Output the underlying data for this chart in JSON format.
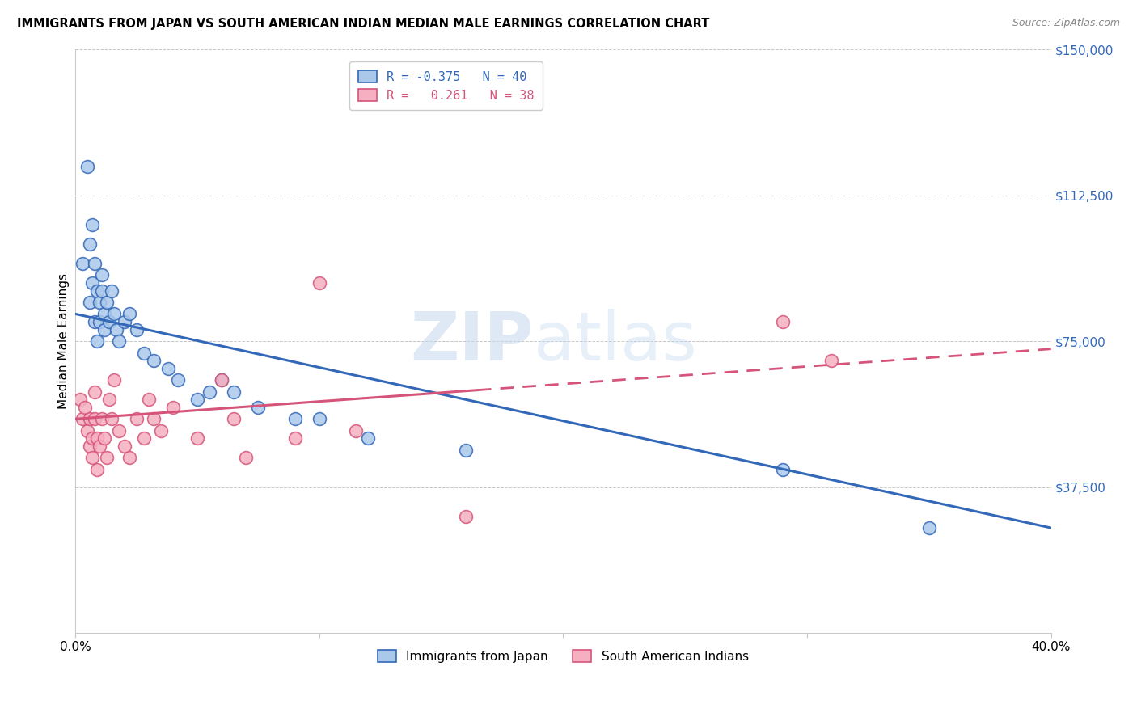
{
  "title": "IMMIGRANTS FROM JAPAN VS SOUTH AMERICAN INDIAN MEDIAN MALE EARNINGS CORRELATION CHART",
  "source": "Source: ZipAtlas.com",
  "ylabel": "Median Male Earnings",
  "ytick_labels": [
    "",
    "$37,500",
    "$75,000",
    "$112,500",
    "$150,000"
  ],
  "xlim": [
    0.0,
    0.4
  ],
  "ylim": [
    0,
    150000
  ],
  "legend_top_labels": [
    "R = -0.375   N = 40",
    "R =   0.261   N = 38"
  ],
  "legend_bottom": [
    "Immigrants from Japan",
    "South American Indians"
  ],
  "japan_color": "#aac8ea",
  "japan_line_color": "#3368b8",
  "india_color": "#f5afc0",
  "india_line_color": "#d6547a",
  "watermark_zip": "ZIP",
  "watermark_atlas": "atlas",
  "japan_x": [
    0.003,
    0.005,
    0.006,
    0.006,
    0.007,
    0.007,
    0.008,
    0.008,
    0.009,
    0.009,
    0.01,
    0.01,
    0.011,
    0.011,
    0.012,
    0.012,
    0.013,
    0.014,
    0.015,
    0.016,
    0.017,
    0.018,
    0.02,
    0.022,
    0.025,
    0.028,
    0.032,
    0.038,
    0.042,
    0.05,
    0.055,
    0.06,
    0.065,
    0.075,
    0.09,
    0.1,
    0.12,
    0.16,
    0.29,
    0.35
  ],
  "japan_y": [
    95000,
    120000,
    85000,
    100000,
    90000,
    105000,
    80000,
    95000,
    88000,
    75000,
    85000,
    80000,
    92000,
    88000,
    82000,
    78000,
    85000,
    80000,
    88000,
    82000,
    78000,
    75000,
    80000,
    82000,
    78000,
    72000,
    70000,
    68000,
    65000,
    60000,
    62000,
    65000,
    62000,
    58000,
    55000,
    55000,
    50000,
    47000,
    42000,
    27000
  ],
  "india_x": [
    0.002,
    0.003,
    0.004,
    0.005,
    0.006,
    0.006,
    0.007,
    0.007,
    0.008,
    0.008,
    0.009,
    0.009,
    0.01,
    0.011,
    0.012,
    0.013,
    0.014,
    0.015,
    0.016,
    0.018,
    0.02,
    0.022,
    0.025,
    0.028,
    0.03,
    0.032,
    0.035,
    0.04,
    0.05,
    0.06,
    0.065,
    0.07,
    0.09,
    0.1,
    0.115,
    0.16,
    0.29,
    0.31
  ],
  "india_y": [
    60000,
    55000,
    58000,
    52000,
    55000,
    48000,
    50000,
    45000,
    55000,
    62000,
    50000,
    42000,
    48000,
    55000,
    50000,
    45000,
    60000,
    55000,
    65000,
    52000,
    48000,
    45000,
    55000,
    50000,
    60000,
    55000,
    52000,
    58000,
    50000,
    65000,
    55000,
    45000,
    50000,
    90000,
    52000,
    30000,
    80000,
    70000
  ]
}
